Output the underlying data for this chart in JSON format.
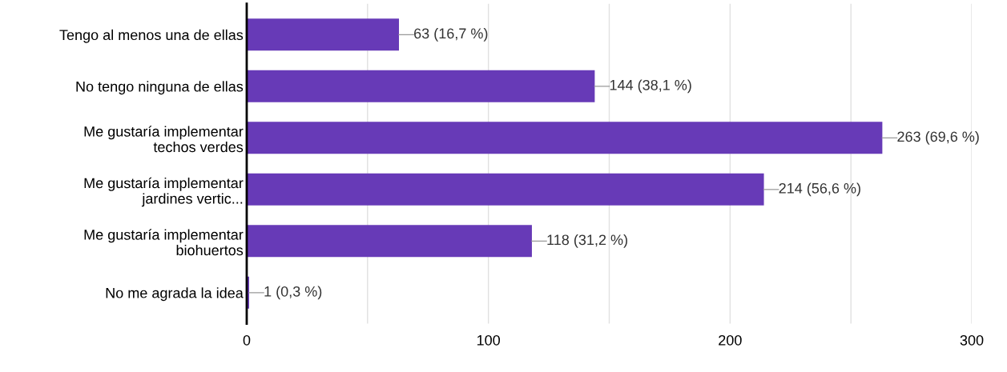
{
  "chart_data": {
    "type": "bar",
    "orientation": "horizontal",
    "categories": [
      "Tengo al menos una de ellas",
      "No tengo ninguna de ellas",
      "Me gustaría implementar\ntechos verdes",
      "Me gustaría implementar\njardines vertic...",
      "Me gustaría implementar\nbiohuertos",
      "No me agrada la idea"
    ],
    "values": [
      63,
      144,
      263,
      214,
      118,
      1
    ],
    "color": "#673ab7",
    "value_labels": [
      "63 (16,7 %)",
      "144 (38,1 %)",
      "263 (69,6 %)",
      "214 (56,6 %)",
      "118 (31,2 %)",
      "1 (0,3 %)"
    ],
    "xlim": [
      0,
      300
    ],
    "xticks": [
      0,
      {
        "value": 50,
        "label": null
      },
      100,
      {
        "value": 150,
        "label": null
      },
      200,
      {
        "value": 250,
        "label": null
      },
      300
    ],
    "grid": "x"
  }
}
